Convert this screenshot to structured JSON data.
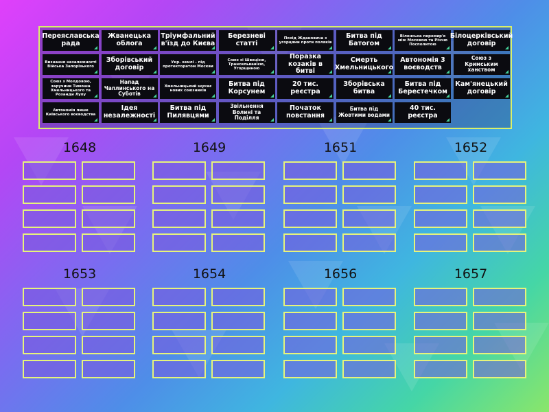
{
  "colors": {
    "bank_border": "#d9f06a",
    "slot_border": "#e7f47a",
    "tile_bg": "#0b0b10",
    "tile_text": "#ffffff",
    "corner_accent": "#46d39a"
  },
  "tiles": [
    {
      "label": "Переяславська рада",
      "size": "l"
    },
    {
      "label": "Жванецька облога",
      "size": "l"
    },
    {
      "label": "Тріумфальний в'їзд до Києва",
      "size": "l"
    },
    {
      "label": "Березневі статті",
      "size": "l"
    },
    {
      "label": "Похід Ждановича з угорцями проти поляків",
      "size": "s"
    },
    {
      "label": "Битва під Батогом",
      "size": "l"
    },
    {
      "label": "Віленська перемир'я між Москвою та Річчю Посполитою",
      "size": "s"
    },
    {
      "label": "Білоцерківський договір",
      "size": "l"
    },
    {
      "label": "Визнання незалежності Війська Запорізького",
      "size": "s"
    },
    {
      "label": "Зборівський договір",
      "size": "l"
    },
    {
      "label": "Укр. землі - під протекторатом Москви",
      "size": "s"
    },
    {
      "label": "Союз зі Швецією, Трансильванією, Угорщиною",
      "size": "s"
    },
    {
      "label": "Поразка козаків в битві",
      "size": "l"
    },
    {
      "label": "Смерть Хмельницького",
      "size": "l"
    },
    {
      "label": "Автономія 3 воєводств",
      "size": "l"
    },
    {
      "label": "Союз з Кримським ханством",
      "size": "m"
    },
    {
      "label": "Союз з Молдовою, заручини Тимоша Хмельницького та Розанди Лупу",
      "size": "s"
    },
    {
      "label": "Напад Чаплинського на Суботів",
      "size": "m"
    },
    {
      "label": "Хмельницький шукає нових союзників",
      "size": "s"
    },
    {
      "label": "Битва під Корсунем",
      "size": "l"
    },
    {
      "label": "20 тис. реєстра",
      "size": "l"
    },
    {
      "label": "Зборівська битва",
      "size": "l"
    },
    {
      "label": "Битва під Берестечком",
      "size": "l"
    },
    {
      "label": "Кам'янецький договір",
      "size": "l"
    },
    {
      "label": "Автономія лише Київського воєводства",
      "size": "s"
    },
    {
      "label": "Ідея незалежності",
      "size": "l"
    },
    {
      "label": "Битва під Пилявцями",
      "size": "l"
    },
    {
      "label": "Звільнення Волині та Поділля",
      "size": "m"
    },
    {
      "label": "Початок повстання",
      "size": "l"
    },
    {
      "label": "Битва під Жовтими водами",
      "size": "m"
    },
    {
      "label": "40 тис. реєстра",
      "size": "l"
    }
  ],
  "groups": [
    {
      "year": "1648"
    },
    {
      "year": "1649"
    },
    {
      "year": "1651"
    },
    {
      "year": "1652"
    },
    {
      "year": "1653"
    },
    {
      "year": "1654"
    },
    {
      "year": "1656"
    },
    {
      "year": "1657"
    }
  ]
}
